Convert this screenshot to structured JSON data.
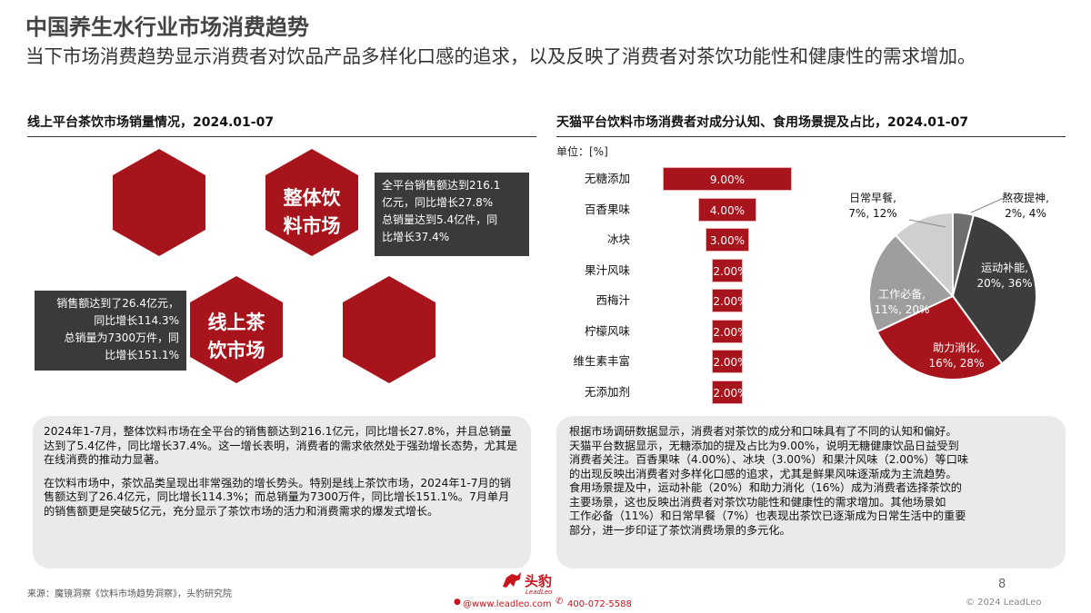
{
  "header": {
    "title": "中国养生水行业市场消费趋势",
    "subtitle": "当下市场消费趋势显示消费者对饮品产品多样化口感的追求，以及反映了消费者对茶饮功能性和健康性的需求增加。"
  },
  "left": {
    "section_title": "线上平台茶饮市场销量情况，2024.01-07",
    "hex_top_label_1": "整体饮",
    "hex_top_label_2": "料市场",
    "hex_bottom_label_1": "线上茶",
    "hex_bottom_label_2": "饮市场",
    "box_right": [
      "全平台销售额达到216.1",
      "亿元，同比增长27.8%",
      "总销量达到5.4亿件，同",
      "比增长37.4%"
    ],
    "box_left": [
      "销售额达到了26.4亿元，",
      "同比增长114.3%",
      "总销量为7300万件，同",
      "比增长151.1%"
    ],
    "note_p1": "2024年1-7月，整体饮料市场在全平台的销售额达到216.1亿元，同比增长27.8%，并且总销量达到了5.4亿件，同比增长37.4%。这一增长表明，消费者的需求依然处于强劲增长态势，尤其是在线消费的推动力显著。",
    "note_p2": "在饮料市场中，茶饮品类呈现出非常强劲的增长势头。特别是线上茶饮市场，2024年1-7月的销售额达到了26.4亿元，同比增长114.3%；而总销量为7300万件，同比增长151.1%。7月单月的销售额更是突破5亿元，充分显示了茶饮市场的活力和消费需求的爆发式增长。"
  },
  "right": {
    "section_title": "天猫平台饮料市场消费者对成分认知、食用场景提及占比，2024.01-07",
    "unit_label": "单位：[%]",
    "note_lines": [
      "根据市场调研数据显示，消费者对茶饮的成分和口味具有了不同的认知和偏好。",
      "天猫平台数据显示，无糖添加的提及占比为9.00%，说明无糖健康饮品日益受到",
      "消费者关注。百香果味（4.00%）、冰块（3.00%）和果汁风味（2.00%）等口味",
      "的出现反映出消费者对多样化口感的追求，尤其是鲜果风味逐渐成为主流趋势。",
      "食用场景提及中，运动补能（20%）和助力消化（16%）成为消费者选择茶饮的",
      "主要场景，这也反映出消费者对茶饮功能性和健康性的需求增加。其他场景如",
      "工作必备（11%）和日常早餐（7%）也表现出茶饮已逐渐成为日常生活中的重要",
      "部分，进一步印证了茶饮消费场景的多元化。"
    ]
  },
  "chart_data": [
    {
      "type": "bar",
      "orientation": "horizontal-funnel",
      "categories": [
        "无糖添加",
        "百香果味",
        "冰块",
        "果汁风味",
        "西梅汁",
        "柠檬风味",
        "维生素丰富",
        "无添加剂"
      ],
      "values": [
        9.0,
        4.0,
        3.0,
        2.0,
        2.0,
        2.0,
        2.0,
        2.0
      ],
      "value_labels": [
        "9.00%",
        "4.00%",
        "3.00%",
        "2.00%",
        "2.00%",
        "2.00%",
        "2.00%",
        "2.00%"
      ],
      "color": "#a8141c"
    },
    {
      "type": "pie",
      "slices": [
        {
          "label": "运动补能,",
          "sub": "20%, 36%",
          "value": 36,
          "color": "#3d3d3d"
        },
        {
          "label": "助力消化,",
          "sub": "16%, 28%",
          "value": 28,
          "color": "#a8141c"
        },
        {
          "label": "工作必备,",
          "sub": "11%, 20%",
          "value": 20,
          "color": "#9e9e9e"
        },
        {
          "label": "日常早餐,",
          "sub": "7%, 12%",
          "value": 12,
          "color": "#cfcfcf"
        },
        {
          "label": "熬夜提神,",
          "sub": "2%, 4%",
          "value": 4,
          "color": "#6e6e6e"
        }
      ]
    }
  ],
  "footer": {
    "source": "来源：魔镜洞察《饮料市场趋势洞察》，头豹研究院",
    "logo_text": "头豹",
    "logo_sub": "LeadLeo",
    "website": "@www.leadleo.com",
    "phone": "400-072-5588",
    "page_number": "8",
    "copyright": "© 2024 LeadLeo"
  }
}
